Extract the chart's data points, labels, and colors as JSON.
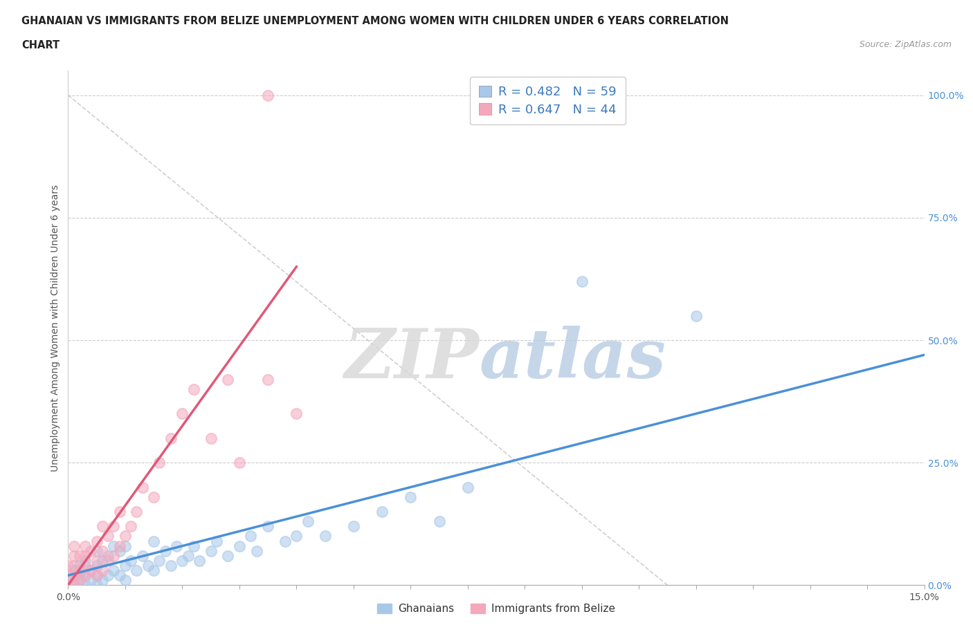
{
  "title_line1": "GHANAIAN VS IMMIGRANTS FROM BELIZE UNEMPLOYMENT AMONG WOMEN WITH CHILDREN UNDER 6 YEARS CORRELATION",
  "title_line2": "CHART",
  "source": "Source: ZipAtlas.com",
  "ylabel": "Unemployment Among Women with Children Under 6 years",
  "xlim": [
    0.0,
    0.15
  ],
  "ylim": [
    0.0,
    1.05
  ],
  "ytick_labels": [
    "100.0%",
    "75.0%",
    "50.0%",
    "25.0%",
    "0.0%"
  ],
  "ytick_values": [
    1.0,
    0.75,
    0.5,
    0.25,
    0.0
  ],
  "ghanaian_color": "#a8c8e8",
  "belize_color": "#f4a8bc",
  "ghanaian_R": 0.482,
  "ghanaian_N": 59,
  "belize_R": 0.647,
  "belize_N": 44,
  "ghanaian_line_color": "#4a90d9",
  "belize_line_color": "#e05878",
  "legend_label_ghanaian": "Ghanaians",
  "legend_label_belize": "Immigrants from Belize",
  "ghanaian_x": [
    0.0,
    0.0,
    0.001,
    0.001,
    0.002,
    0.002,
    0.002,
    0.003,
    0.003,
    0.003,
    0.004,
    0.004,
    0.005,
    0.005,
    0.005,
    0.005,
    0.006,
    0.006,
    0.007,
    0.007,
    0.008,
    0.008,
    0.009,
    0.009,
    0.01,
    0.01,
    0.01,
    0.011,
    0.012,
    0.013,
    0.014,
    0.015,
    0.015,
    0.016,
    0.017,
    0.018,
    0.019,
    0.02,
    0.021,
    0.022,
    0.023,
    0.025,
    0.026,
    0.028,
    0.03,
    0.032,
    0.033,
    0.035,
    0.038,
    0.04,
    0.042,
    0.045,
    0.05,
    0.055,
    0.06,
    0.065,
    0.07,
    0.09,
    0.11
  ],
  "ghanaian_y": [
    0.0,
    0.01,
    0.0,
    0.03,
    0.01,
    0.02,
    0.04,
    0.0,
    0.02,
    0.05,
    0.01,
    0.03,
    0.0,
    0.02,
    0.04,
    0.07,
    0.01,
    0.05,
    0.02,
    0.06,
    0.03,
    0.08,
    0.02,
    0.07,
    0.01,
    0.04,
    0.08,
    0.05,
    0.03,
    0.06,
    0.04,
    0.03,
    0.09,
    0.05,
    0.07,
    0.04,
    0.08,
    0.05,
    0.06,
    0.08,
    0.05,
    0.07,
    0.09,
    0.06,
    0.08,
    0.1,
    0.07,
    0.12,
    0.09,
    0.1,
    0.13,
    0.1,
    0.12,
    0.15,
    0.18,
    0.13,
    0.2,
    0.62,
    0.55
  ],
  "belize_x": [
    0.0,
    0.0,
    0.0,
    0.001,
    0.001,
    0.001,
    0.001,
    0.001,
    0.002,
    0.002,
    0.002,
    0.003,
    0.003,
    0.003,
    0.003,
    0.004,
    0.004,
    0.005,
    0.005,
    0.005,
    0.006,
    0.006,
    0.006,
    0.007,
    0.007,
    0.008,
    0.008,
    0.009,
    0.009,
    0.01,
    0.011,
    0.012,
    0.013,
    0.015,
    0.016,
    0.018,
    0.02,
    0.022,
    0.025,
    0.028,
    0.03,
    0.035,
    0.04,
    0.035
  ],
  "belize_y": [
    0.0,
    0.02,
    0.04,
    0.0,
    0.02,
    0.04,
    0.06,
    0.08,
    0.01,
    0.03,
    0.06,
    0.02,
    0.04,
    0.06,
    0.08,
    0.03,
    0.07,
    0.02,
    0.05,
    0.09,
    0.03,
    0.07,
    0.12,
    0.05,
    0.1,
    0.06,
    0.12,
    0.08,
    0.15,
    0.1,
    0.12,
    0.15,
    0.2,
    0.18,
    0.25,
    0.3,
    0.35,
    0.4,
    0.3,
    0.42,
    0.25,
    0.42,
    0.35,
    1.0
  ],
  "ghanaian_line_x": [
    0.0,
    0.15
  ],
  "ghanaian_line_y": [
    0.02,
    0.47
  ],
  "belize_line_x": [
    0.0,
    0.04
  ],
  "belize_line_y": [
    0.0,
    0.65
  ],
  "ref_line_x": [
    0.0,
    0.105
  ],
  "ref_line_y": [
    1.0,
    0.0
  ]
}
